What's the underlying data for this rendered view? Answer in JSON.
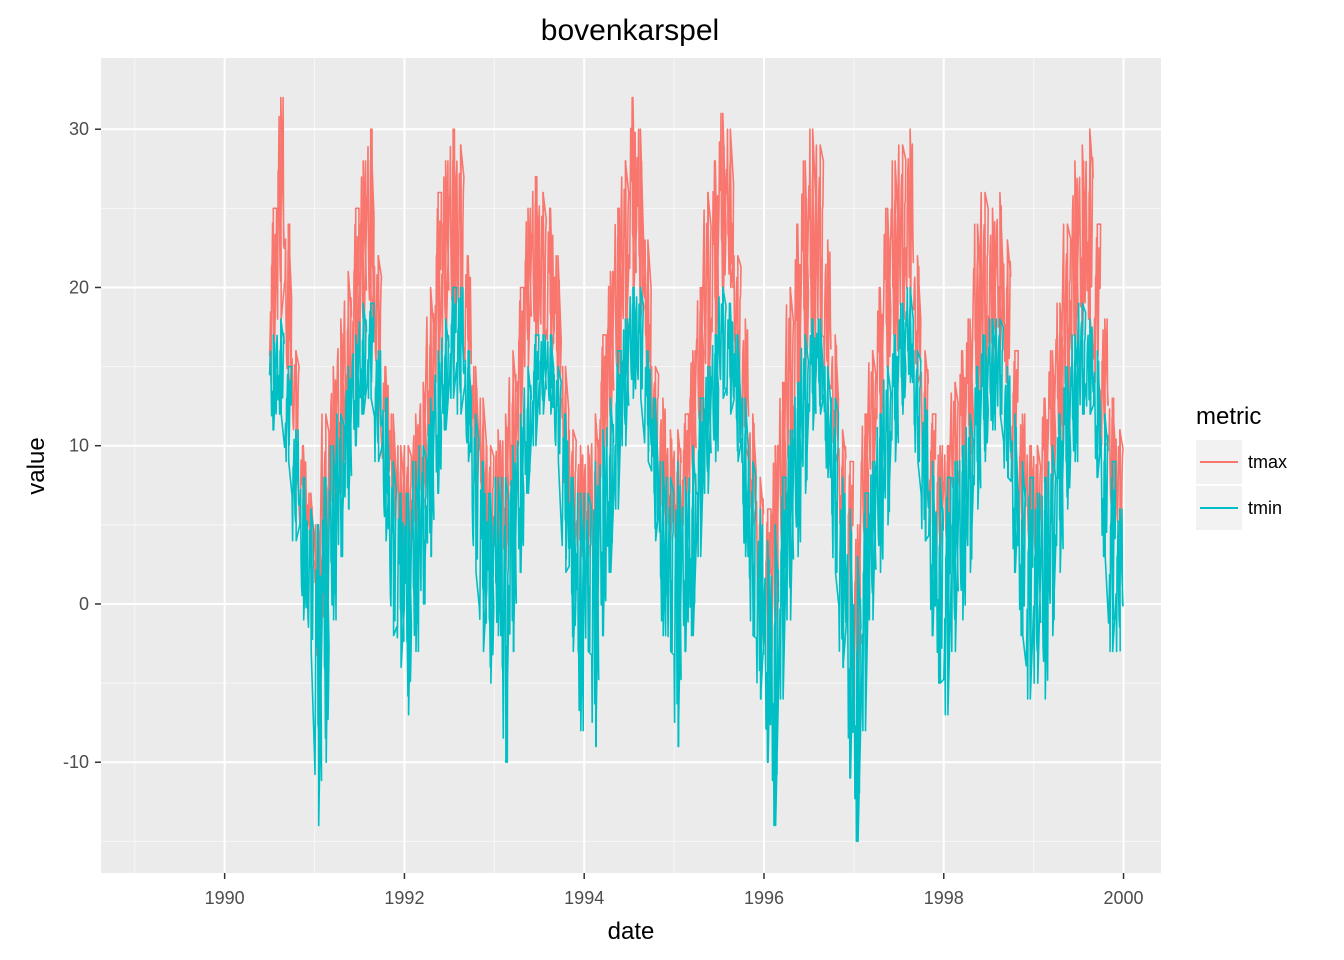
{
  "chart_data": {
    "type": "line",
    "title": "bovenkarspel",
    "xlabel": "date",
    "ylabel": "value",
    "xlim": [
      "1988-08-16",
      "2000-06-01"
    ],
    "ylim": [
      -17,
      34.5
    ],
    "x_ticks": [
      "1990",
      "1992",
      "1994",
      "1996",
      "1998",
      "2000"
    ],
    "y_ticks": [
      -10,
      0,
      10,
      20,
      30
    ],
    "grid": true,
    "legend": {
      "title": "metric",
      "position": "right"
    },
    "series": [
      {
        "name": "tmax",
        "color": "#F8766D",
        "x": [
          "1990-07",
          "1990-08",
          "1990-09",
          "1990-10",
          "1990-11",
          "1990-12",
          "1991-01",
          "1991-02",
          "1991-03",
          "1991-04",
          "1991-05",
          "1991-06",
          "1991-07",
          "1991-08",
          "1991-09",
          "1991-10",
          "1991-11",
          "1991-12",
          "1992-01",
          "1992-02",
          "1992-03",
          "1992-04",
          "1992-05",
          "1992-06",
          "1992-07",
          "1992-08",
          "1992-09",
          "1992-10",
          "1992-11",
          "1992-12",
          "1993-01",
          "1993-02",
          "1993-03",
          "1993-04",
          "1993-05",
          "1993-06",
          "1993-07",
          "1993-08",
          "1993-09",
          "1993-10",
          "1993-11",
          "1993-12",
          "1994-01",
          "1994-02",
          "1994-03",
          "1994-04",
          "1994-05",
          "1994-06",
          "1994-07",
          "1994-08",
          "1994-09",
          "1994-10",
          "1994-11",
          "1994-12",
          "1995-01",
          "1995-02",
          "1995-03",
          "1995-04",
          "1995-05",
          "1995-06",
          "1995-07",
          "1995-08",
          "1995-09",
          "1995-10",
          "1995-11",
          "1995-12",
          "1996-01",
          "1996-02",
          "1996-03",
          "1996-04",
          "1996-05",
          "1996-06",
          "1996-07",
          "1996-08",
          "1996-09",
          "1996-10",
          "1996-11",
          "1996-12",
          "1997-01",
          "1997-02",
          "1997-03",
          "1997-04",
          "1997-05",
          "1997-06",
          "1997-07",
          "1997-08",
          "1997-09",
          "1997-10",
          "1997-11",
          "1997-12",
          "1998-01",
          "1998-02",
          "1998-03",
          "1998-04",
          "1998-05",
          "1998-06",
          "1998-07",
          "1998-08",
          "1998-09",
          "1998-10",
          "1998-11",
          "1998-12",
          "1999-01",
          "1999-02",
          "1999-03",
          "1999-04",
          "1999-05",
          "1999-06",
          "1999-07",
          "1999-08",
          "1999-09",
          "1999-10",
          "1999-11",
          "1999-12"
        ],
        "min": [
          14,
          18,
          13,
          10,
          4,
          2,
          -4,
          -2,
          5,
          7,
          10,
          13,
          16,
          17,
          14,
          8,
          5,
          3,
          2,
          4,
          6,
          9,
          14,
          16,
          17,
          17,
          14,
          7,
          5,
          2,
          3,
          2,
          6,
          10,
          15,
          16,
          16,
          15,
          13,
          7,
          3,
          3,
          3,
          1,
          8,
          10,
          13,
          16,
          19,
          18,
          14,
          9,
          5,
          4,
          3,
          5,
          7,
          10,
          13,
          15,
          19,
          20,
          14,
          10,
          5,
          -1,
          -4,
          -3,
          2,
          7,
          9,
          14,
          16,
          17,
          14,
          9,
          4,
          -1,
          -6,
          3,
          7,
          10,
          14,
          16,
          18,
          19,
          14,
          8,
          5,
          3,
          3,
          6,
          6,
          8,
          13,
          14,
          15,
          16,
          14,
          8,
          4,
          3,
          2,
          5,
          7,
          10,
          13,
          15,
          17,
          18,
          14,
          10,
          5,
          4
        ],
        "max": [
          25,
          32,
          24,
          16,
          10,
          7,
          5,
          12,
          15,
          18,
          21,
          25,
          28,
          30,
          22,
          15,
          12,
          10,
          10,
          12,
          14,
          20,
          26,
          28,
          30,
          29,
          22,
          15,
          13,
          10,
          11,
          12,
          16,
          20,
          25,
          27,
          26,
          25,
          22,
          15,
          11,
          10,
          10,
          12,
          17,
          21,
          25,
          28,
          32,
          30,
          23,
          15,
          13,
          11,
          11,
          12,
          16,
          20,
          26,
          28,
          31,
          30,
          22,
          18,
          12,
          8,
          6,
          10,
          14,
          20,
          24,
          28,
          30,
          29,
          23,
          17,
          11,
          9,
          5,
          12,
          16,
          20,
          25,
          28,
          29,
          30,
          22,
          16,
          12,
          10,
          10,
          14,
          16,
          18,
          24,
          26,
          25,
          26,
          23,
          16,
          12,
          10,
          10,
          13,
          16,
          19,
          24,
          28,
          29,
          30,
          24,
          18,
          13,
          11
        ]
      },
      {
        "name": "tmin",
        "color": "#00BFC4",
        "x": [
          "1990-07",
          "1990-08",
          "1990-09",
          "1990-10",
          "1990-11",
          "1990-12",
          "1991-01",
          "1991-02",
          "1991-03",
          "1991-04",
          "1991-05",
          "1991-06",
          "1991-07",
          "1991-08",
          "1991-09",
          "1991-10",
          "1991-11",
          "1991-12",
          "1992-01",
          "1992-02",
          "1992-03",
          "1992-04",
          "1992-05",
          "1992-06",
          "1992-07",
          "1992-08",
          "1992-09",
          "1992-10",
          "1992-11",
          "1992-12",
          "1993-01",
          "1993-02",
          "1993-03",
          "1993-04",
          "1993-05",
          "1993-06",
          "1993-07",
          "1993-08",
          "1993-09",
          "1993-10",
          "1993-11",
          "1993-12",
          "1994-01",
          "1994-02",
          "1994-03",
          "1994-04",
          "1994-05",
          "1994-06",
          "1994-07",
          "1994-08",
          "1994-09",
          "1994-10",
          "1994-11",
          "1994-12",
          "1995-01",
          "1995-02",
          "1995-03",
          "1995-04",
          "1995-05",
          "1995-06",
          "1995-07",
          "1995-08",
          "1995-09",
          "1995-10",
          "1995-11",
          "1995-12",
          "1996-01",
          "1996-02",
          "1996-03",
          "1996-04",
          "1996-05",
          "1996-06",
          "1996-07",
          "1996-08",
          "1996-09",
          "1996-10",
          "1996-11",
          "1996-12",
          "1997-01",
          "1997-02",
          "1997-03",
          "1997-04",
          "1997-05",
          "1997-06",
          "1997-07",
          "1997-08",
          "1997-09",
          "1997-10",
          "1997-11",
          "1997-12",
          "1998-01",
          "1998-02",
          "1998-03",
          "1998-04",
          "1998-05",
          "1998-06",
          "1998-07",
          "1998-08",
          "1998-09",
          "1998-10",
          "1998-11",
          "1998-12",
          "1999-01",
          "1999-02",
          "1999-03",
          "1999-04",
          "1999-05",
          "1999-06",
          "1999-07",
          "1999-08",
          "1999-09",
          "1999-10",
          "1999-11",
          "1999-12"
        ],
        "min": [
          11,
          12,
          9,
          4,
          -1,
          -3,
          -14,
          -10,
          -1,
          3,
          6,
          10,
          12,
          13,
          9,
          4,
          -2,
          -4,
          -7,
          -3,
          0,
          3,
          7,
          11,
          13,
          12,
          9,
          2,
          -3,
          -5,
          -2,
          -10,
          -3,
          2,
          7,
          10,
          12,
          12,
          9,
          2,
          -3,
          -8,
          -3,
          -9,
          -2,
          2,
          6,
          10,
          13,
          13,
          9,
          4,
          -2,
          -3,
          -9,
          -3,
          -2,
          3,
          7,
          9,
          13,
          12,
          9,
          3,
          -2,
          -6,
          -10,
          -14,
          -6,
          -1,
          3,
          7,
          11,
          12,
          8,
          2,
          -4,
          -11,
          -15,
          -8,
          -1,
          2,
          5,
          9,
          12,
          14,
          9,
          4,
          -2,
          -5,
          -7,
          -3,
          -1,
          2,
          6,
          9,
          11,
          12,
          8,
          2,
          -2,
          -6,
          -5,
          -6,
          -2,
          2,
          6,
          9,
          12,
          12,
          8,
          3,
          -3,
          -3
        ],
        "max": [
          17,
          18,
          15,
          11,
          8,
          6,
          5,
          8,
          10,
          12,
          15,
          17,
          19,
          19,
          16,
          13,
          9,
          7,
          7,
          9,
          10,
          13,
          16,
          18,
          20,
          20,
          16,
          12,
          9,
          7,
          8,
          8,
          10,
          12,
          15,
          17,
          17,
          17,
          15,
          12,
          8,
          7,
          7,
          9,
          11,
          13,
          16,
          18,
          20,
          20,
          16,
          13,
          9,
          8,
          9,
          8,
          10,
          13,
          15,
          17,
          20,
          19,
          17,
          13,
          9,
          6,
          4,
          5,
          8,
          11,
          14,
          17,
          18,
          18,
          15,
          13,
          8,
          6,
          3,
          7,
          9,
          12,
          15,
          17,
          19,
          20,
          16,
          13,
          9,
          8,
          8,
          9,
          10,
          12,
          15,
          17,
          18,
          18,
          15,
          12,
          9,
          8,
          7,
          8,
          10,
          12,
          15,
          17,
          19,
          18,
          16,
          12,
          9,
          6
        ]
      }
    ]
  }
}
